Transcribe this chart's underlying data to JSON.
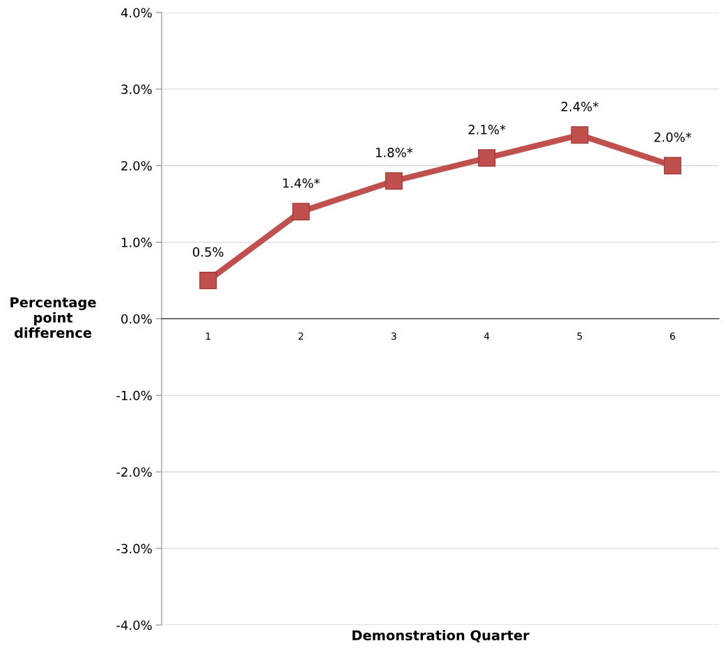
{
  "chart_data": {
    "type": "line",
    "xlabel": "Demonstration Quarter",
    "ylabel": "Percentage\npoint\ndifference",
    "categories": [
      "1",
      "2",
      "3",
      "4",
      "5",
      "6"
    ],
    "series": [
      {
        "color": "#c0504d",
        "values": [
          0.5,
          1.4,
          1.8,
          2.1,
          2.4,
          2.0
        ],
        "value_labels": [
          "0.5%",
          "1.4%*",
          "1.8%*",
          "2.1%*",
          "2.4%*",
          "2.0%*"
        ]
      }
    ],
    "ylim": [
      -4,
      4
    ],
    "yticks": [
      {
        "value": -4,
        "label": "-4.0%"
      },
      {
        "value": -3,
        "label": "-3.0%"
      },
      {
        "value": -2,
        "label": "-2.0%"
      },
      {
        "value": -1,
        "label": "-1.0%"
      },
      {
        "value": 0,
        "label": "0.0%"
      },
      {
        "value": 1,
        "label": "1.0%"
      },
      {
        "value": 2,
        "label": "2.0%"
      },
      {
        "value": 3,
        "label": "3.0%"
      },
      {
        "value": 4,
        "label": "4.0%"
      }
    ],
    "grid": "y",
    "marker": "square",
    "line_style": "solid",
    "legend": false
  }
}
